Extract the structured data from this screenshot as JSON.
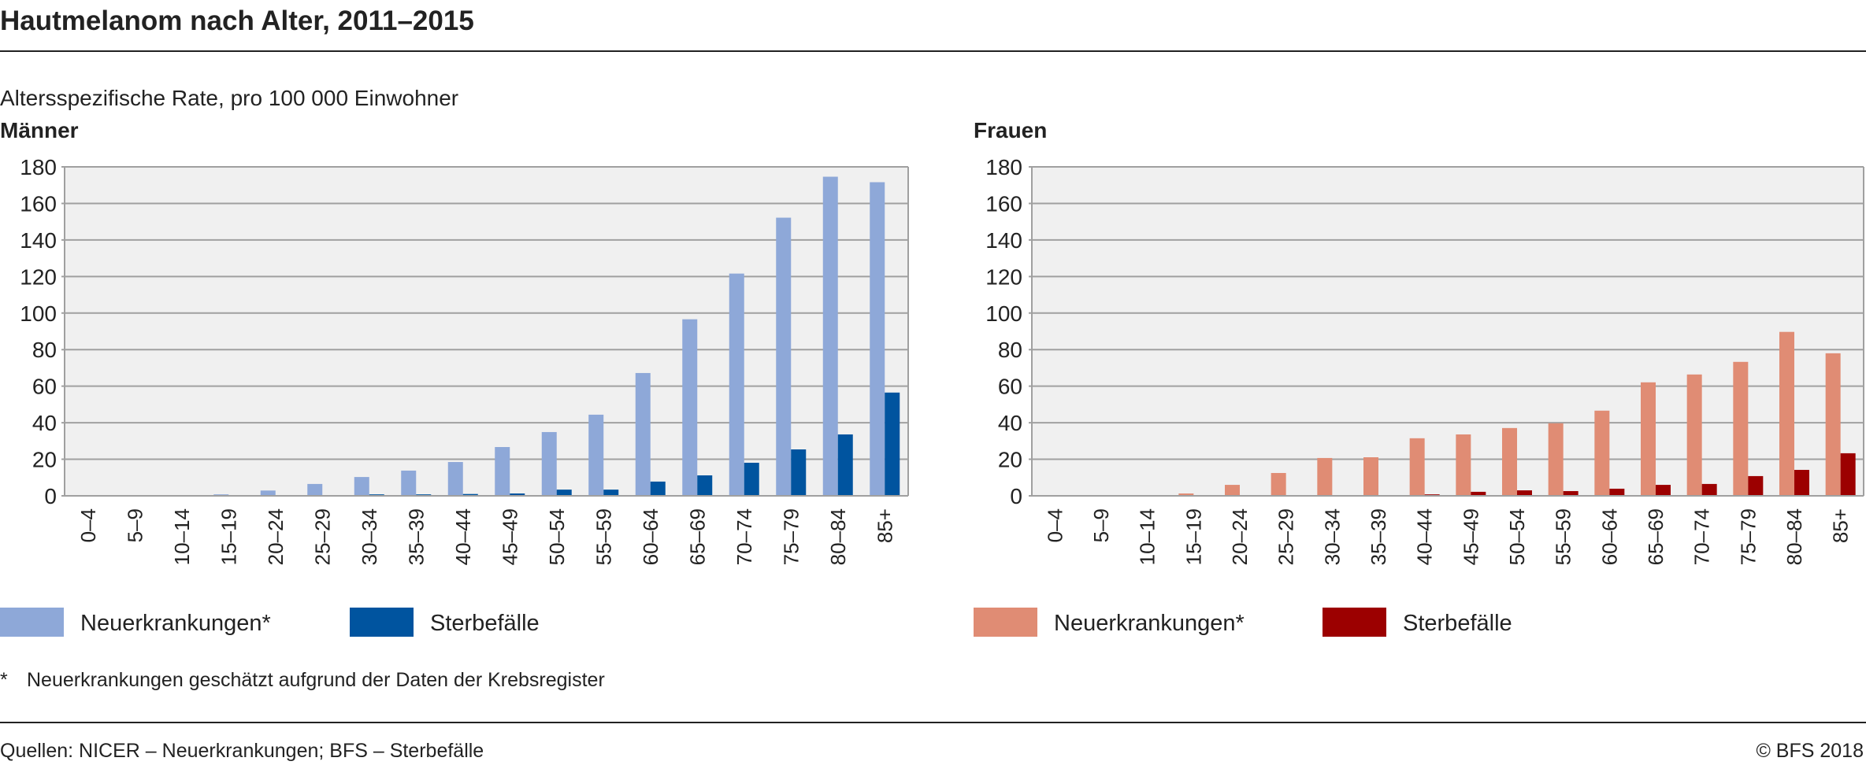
{
  "title": "Hautmelanom nach Alter, 2011–2015",
  "subtitle": "Altersspezifische Rate, pro 100 000 Einwohner",
  "footnote_marker": "*",
  "footnote": "Neuerkrankungen geschätzt aufgrund der Daten der Krebsregister",
  "sources": "Quellen: NICER – Neuerkrankungen; BFS – Sterbefälle",
  "copyright": "© BFS 2018",
  "chart_data": [
    {
      "type": "bar",
      "title": "Männer",
      "xlabel": "",
      "ylabel": "Altersspezifische Rate, pro 100 000 Einwohner",
      "ylim": [
        0,
        180
      ],
      "yticks": [
        "0",
        "20",
        "40",
        "60",
        "80",
        "100",
        "120",
        "140",
        "160",
        "180"
      ],
      "grid": true,
      "legend_position": "bottom",
      "categories": [
        "0–4",
        "5–9",
        "10–14",
        "15–19",
        "20–24",
        "25–29",
        "30–34",
        "35–39",
        "40–44",
        "45–49",
        "50–54",
        "55–59",
        "60–64",
        "65–69",
        "70–74",
        "75–79",
        "80–84",
        "85+"
      ],
      "series": [
        {
          "name": "Neuerkrankungen*",
          "color": "#8ea8d8",
          "values": [
            0,
            0,
            0,
            0.8,
            2.9,
            6.5,
            10.3,
            13.8,
            18.5,
            26.7,
            34.9,
            44.4,
            67.2,
            96.6,
            121.6,
            152.2,
            174.6,
            171.6
          ]
        },
        {
          "name": "Sterbefälle",
          "color": "#00549f",
          "values": [
            0,
            0,
            0,
            0,
            0,
            0.2,
            0.8,
            0.8,
            1.0,
            1.3,
            3.4,
            3.4,
            7.8,
            11.2,
            18.1,
            25.4,
            33.6,
            56.5
          ]
        }
      ]
    },
    {
      "type": "bar",
      "title": "Frauen",
      "xlabel": "",
      "ylabel": "Altersspezifische Rate, pro 100 000 Einwohner",
      "ylim": [
        0,
        180
      ],
      "yticks": [
        "0",
        "20",
        "40",
        "60",
        "80",
        "100",
        "120",
        "140",
        "160",
        "180"
      ],
      "grid": true,
      "legend_position": "bottom",
      "categories": [
        "0–4",
        "5–9",
        "10–14",
        "15–19",
        "20–24",
        "25–29",
        "30–34",
        "35–39",
        "40–44",
        "45–49",
        "50–54",
        "55–59",
        "60–64",
        "65–69",
        "70–74",
        "75–79",
        "80–84",
        "85+"
      ],
      "series": [
        {
          "name": "Neuerkrankungen*",
          "color": "#e08c74",
          "values": [
            0,
            0,
            0,
            1.3,
            6.0,
            12.5,
            20.7,
            21.1,
            31.5,
            33.6,
            37.1,
            39.7,
            46.6,
            62.1,
            66.4,
            73.3,
            89.7,
            78.0
          ]
        },
        {
          "name": "Sterbefälle",
          "color": "#9c0000",
          "values": [
            0,
            0,
            0,
            0,
            0,
            0,
            0.2,
            0.2,
            0.8,
            2.2,
            3.0,
            2.6,
            3.9,
            6.0,
            6.5,
            10.8,
            14.2,
            23.3
          ]
        }
      ]
    }
  ]
}
